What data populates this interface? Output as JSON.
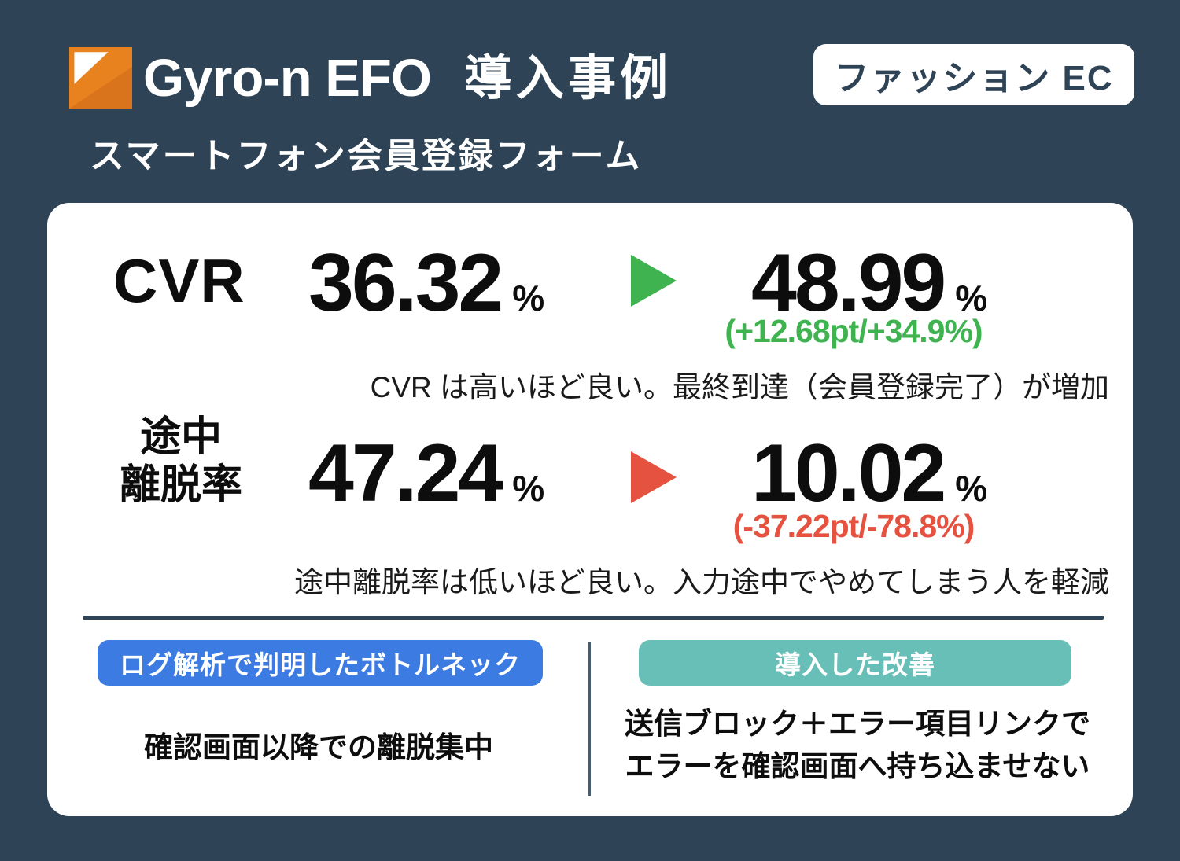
{
  "header": {
    "logo_text": "Gyro-n EFO",
    "page_title": "導入事例",
    "category_badge": "ファッション EC",
    "subtitle": "スマートフォン会員登録フォーム"
  },
  "metrics": [
    {
      "label": "CVR",
      "before": "36.32",
      "unit": "%",
      "after": "48.99",
      "delta": "(+12.68pt/+34.9%)",
      "note": "CVR は高いほど良い。最終到達（会員登録完了）が増加"
    },
    {
      "label_lines": [
        "途中",
        "離脱率"
      ],
      "before": "47.24",
      "unit": "%",
      "after": "10.02",
      "delta": "(-37.22pt/-78.8%)",
      "note": "途中離脱率は低いほど良い。入力途中でやめてしまう人を軽減"
    }
  ],
  "analysis": {
    "bottleneck_badge": "ログ解析で判明したボトルネック",
    "bottleneck_text": "確認画面以降での離脱集中",
    "improvement_badge": "導入した改善",
    "improvement_lines": [
      "送信ブロック＋エラー項目リンクで",
      "エラーを確認画面へ持ち込ませない"
    ]
  },
  "colors": {
    "background": "#2e4355",
    "card": "#ffffff",
    "positive": "#3eb34f",
    "negative": "#e5523f",
    "bottleneck_badge_bg": "#3c7ce2",
    "improvement_badge_bg": "#68bfb7",
    "logo_orange": "#e8821f"
  }
}
